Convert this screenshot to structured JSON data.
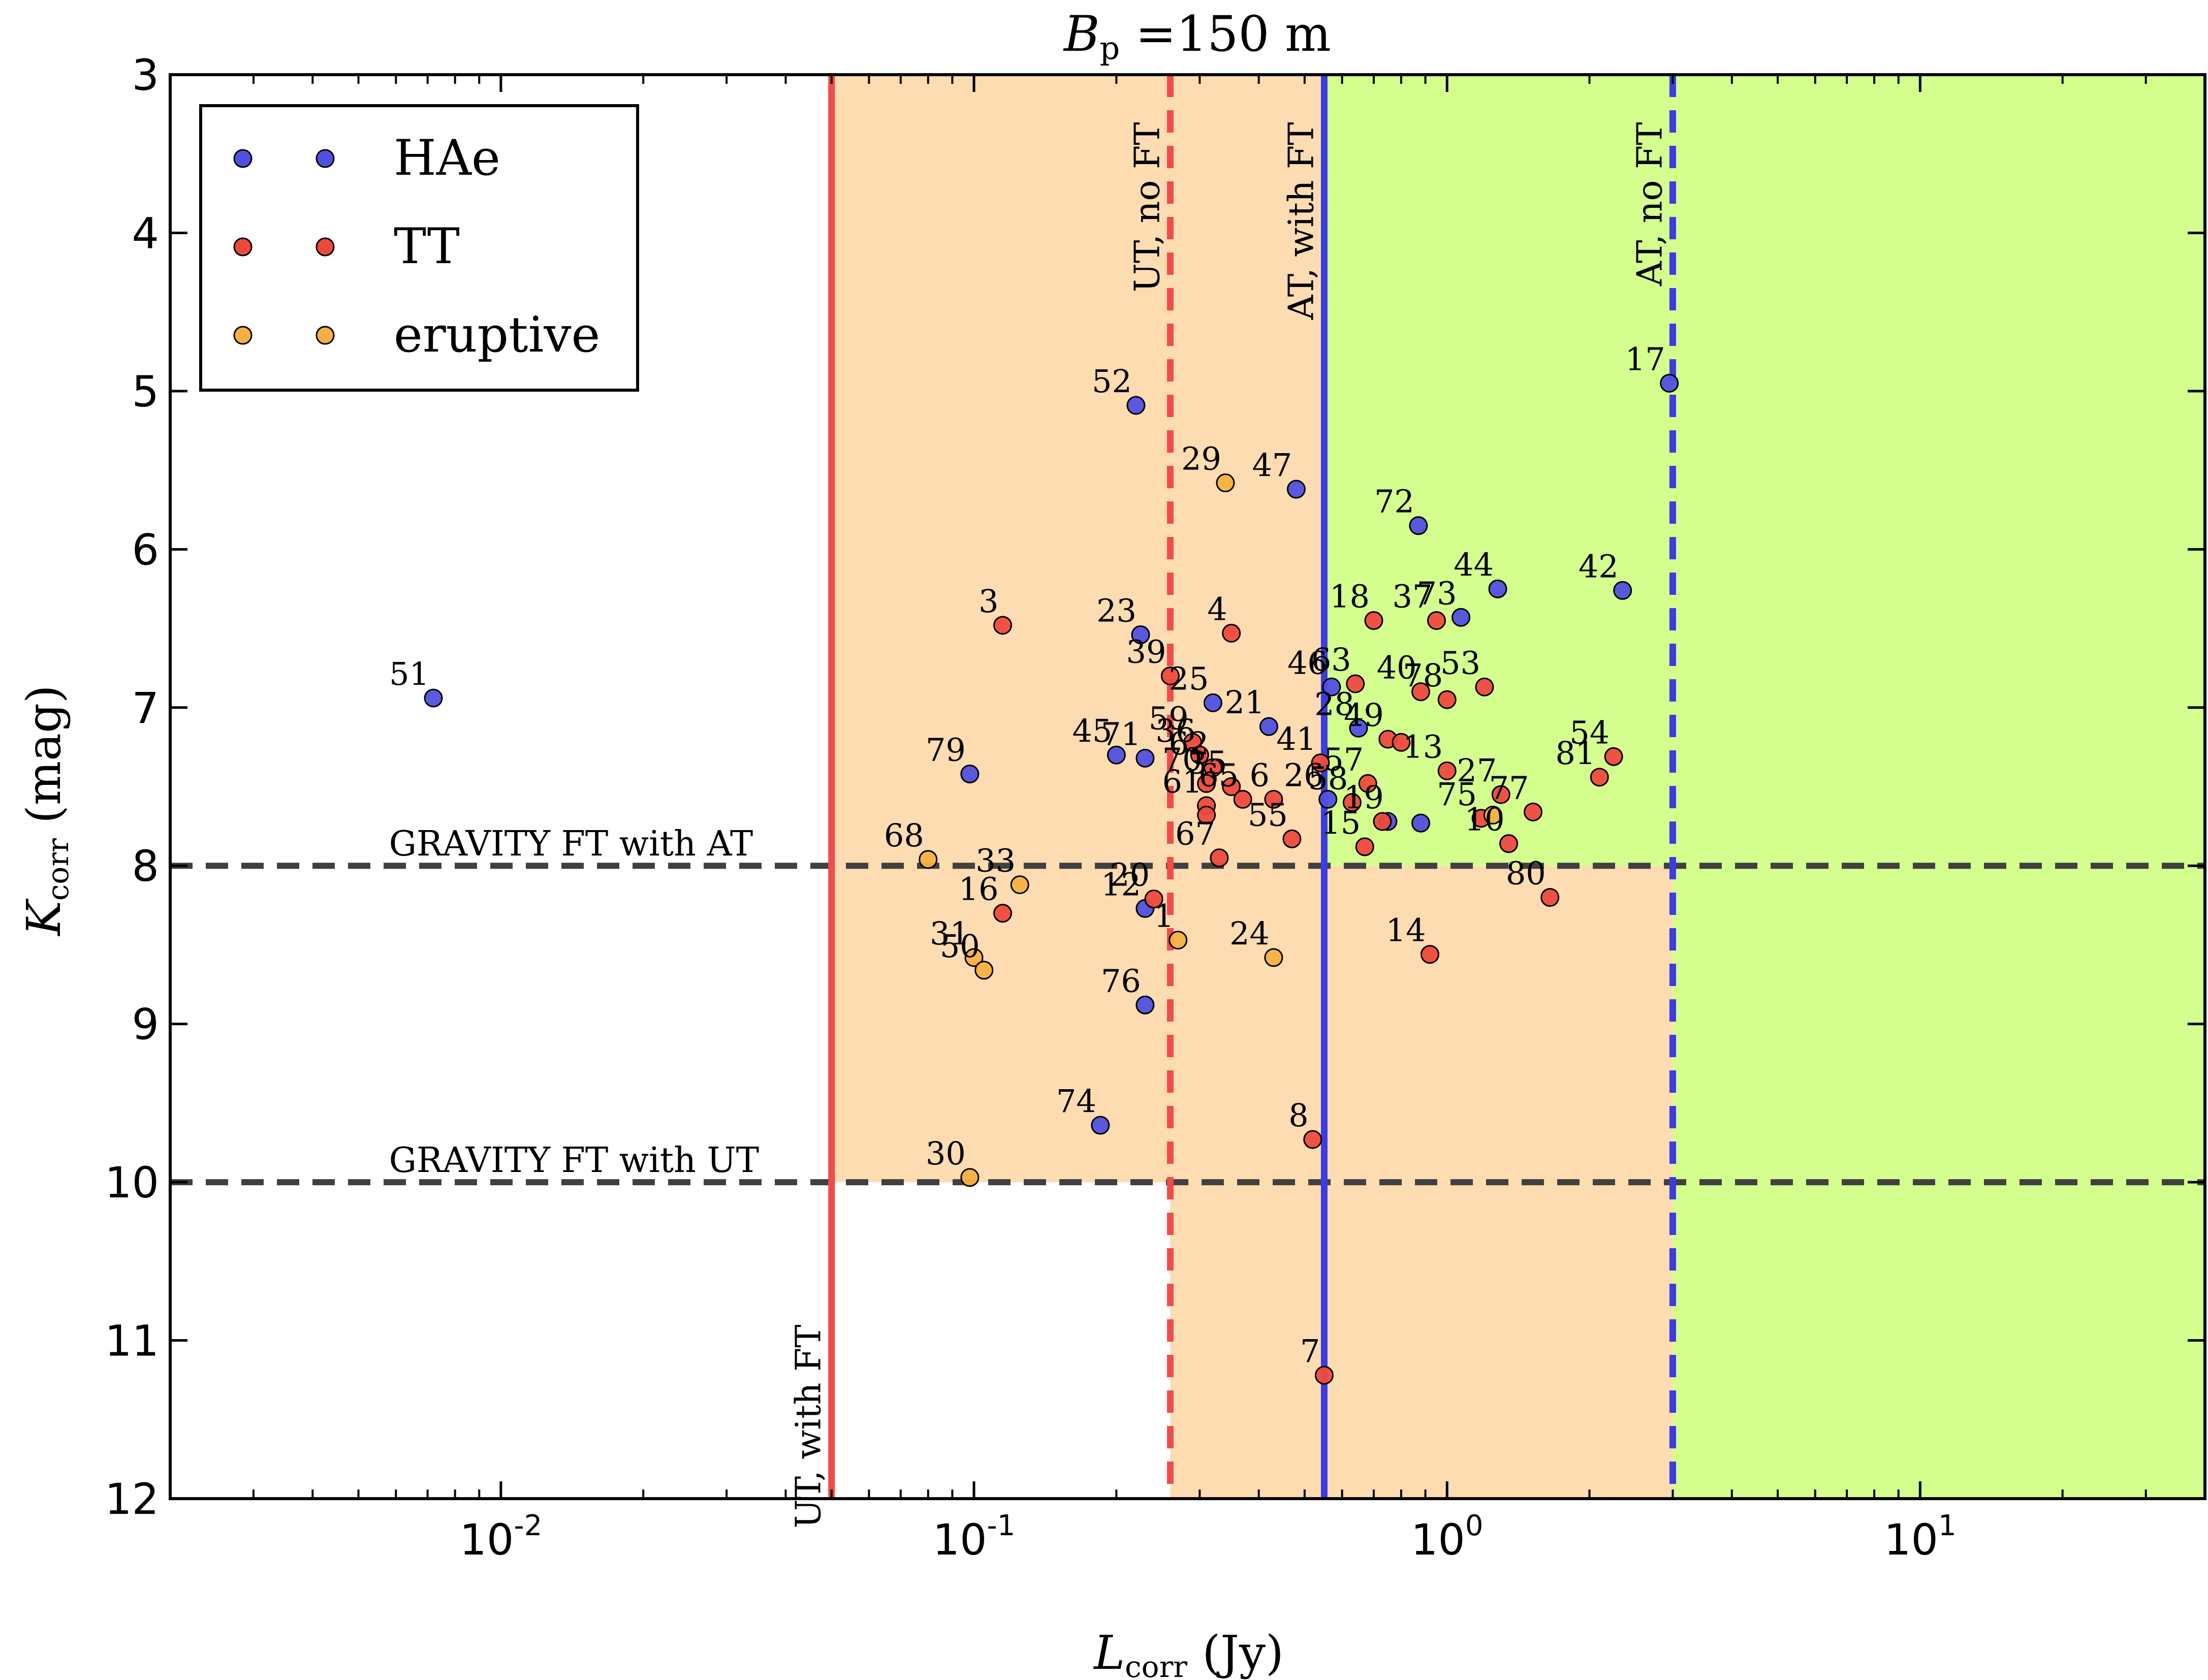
{
  "chart_data": {
    "type": "scatter",
    "title": {
      "main": "B",
      "sub": "p",
      "rest": " =150 m"
    },
    "xlabel": {
      "main": "L",
      "sub": "corr",
      "rest": " (Jy)"
    },
    "ylabel": {
      "main": "K",
      "sub": "corr",
      "rest": " (mag)"
    },
    "x_scale": "log",
    "xlim": [
      0.002,
      40
    ],
    "ylim": [
      12,
      3
    ],
    "x_ticks": [
      {
        "value": 0.01,
        "base": "10",
        "exp": "-2"
      },
      {
        "value": 0.1,
        "base": "10",
        "exp": "-1"
      },
      {
        "value": 1,
        "base": "10",
        "exp": "0"
      },
      {
        "value": 10,
        "base": "10",
        "exp": "1"
      }
    ],
    "y_ticks": [
      "3",
      "4",
      "5",
      "6",
      "7",
      "8",
      "9",
      "10",
      "11",
      "12"
    ],
    "colors": {
      "HAe": "#5050e0",
      "TT": "#ee4a3c",
      "eruptive": "#f5b041",
      "region_ut": "#fddcb1",
      "region_at": "#d4ff8e",
      "ut_line": "#f24b4b",
      "at_line": "#3c3ce0",
      "gravity_line": "#404040"
    },
    "regions": [
      {
        "name": "ut-only-upper",
        "x": [
          0.05,
          0.55
        ],
        "y": [
          3,
          10
        ],
        "color_key": "region_ut"
      },
      {
        "name": "ut-only-lower",
        "x": [
          0.26,
          0.55
        ],
        "y": [
          10,
          12
        ],
        "color_key": "region_ut"
      },
      {
        "name": "at-upper",
        "x": [
          0.55,
          40
        ],
        "y": [
          3,
          8
        ],
        "color_key": "region_at"
      },
      {
        "name": "ut-band-mid",
        "x": [
          0.55,
          3.0
        ],
        "y": [
          8,
          12
        ],
        "color_key": "region_ut"
      },
      {
        "name": "at-right",
        "x": [
          3.0,
          40
        ],
        "y": [
          8,
          12
        ],
        "color_key": "region_at"
      }
    ],
    "vlines": [
      {
        "x": 0.05,
        "style": "solid",
        "color_key": "ut_line",
        "label": "UT, with FT",
        "label_y": 10.9
      },
      {
        "x": 0.26,
        "style": "dashed",
        "color_key": "ut_line",
        "label": "UT, no FT",
        "label_y": 3.3
      },
      {
        "x": 0.55,
        "style": "solid",
        "color_key": "at_line",
        "label": "AT, with FT",
        "label_y": 3.3
      },
      {
        "x": 3.0,
        "style": "dashed",
        "color_key": "at_line",
        "label": "AT, no FT",
        "label_y": 3.3
      }
    ],
    "hlines": [
      {
        "y": 8,
        "label": "GRAVITY FT with AT",
        "label_x": 0.0058
      },
      {
        "y": 10,
        "label": "GRAVITY FT with UT",
        "label_x": 0.0058
      }
    ],
    "legend": {
      "position": "top-left",
      "entries": [
        {
          "name": "HAe",
          "color_key": "HAe"
        },
        {
          "name": "TT",
          "color_key": "TT"
        },
        {
          "name": "eruptive",
          "color_key": "eruptive"
        }
      ]
    },
    "series": [
      {
        "name": "HAe",
        "color_key": "HAe",
        "points": [
          {
            "id": "51",
            "x": 0.0072,
            "y": 6.94
          },
          {
            "id": "79",
            "x": 0.098,
            "y": 7.42
          },
          {
            "id": "52",
            "x": 0.22,
            "y": 5.09
          },
          {
            "id": "23",
            "x": 0.225,
            "y": 6.54
          },
          {
            "id": "45",
            "x": 0.2,
            "y": 7.3
          },
          {
            "id": "71",
            "x": 0.23,
            "y": 7.32
          },
          {
            "id": "12",
            "x": 0.23,
            "y": 8.27
          },
          {
            "id": "76",
            "x": 0.23,
            "y": 8.88
          },
          {
            "id": "74",
            "x": 0.185,
            "y": 9.64
          },
          {
            "id": "25",
            "x": 0.32,
            "y": 6.97
          },
          {
            "id": "21",
            "x": 0.42,
            "y": 7.12
          },
          {
            "id": "47",
            "x": 0.48,
            "y": 5.62
          },
          {
            "id": "46",
            "x": 0.57,
            "y": 6.87
          },
          {
            "id": "28",
            "x": 0.65,
            "y": 7.13
          },
          {
            "id": "26",
            "x": 0.56,
            "y": 7.58
          },
          {
            "id": "19",
            "x": 0.75,
            "y": 7.72
          },
          {
            "id": "72",
            "x": 0.87,
            "y": 5.85
          },
          {
            "id": "73",
            "x": 1.07,
            "y": 6.43
          },
          {
            "id": "44",
            "x": 1.28,
            "y": 6.25
          },
          {
            "id": "42",
            "x": 2.35,
            "y": 6.26
          },
          {
            "id": "17",
            "x": 2.95,
            "y": 4.95
          },
          {
            "id": "",
            "x": 0.88,
            "y": 7.73
          }
        ]
      },
      {
        "name": "TT",
        "color_key": "TT",
        "points": [
          {
            "id": "3",
            "x": 0.115,
            "y": 6.48
          },
          {
            "id": "16",
            "x": 0.115,
            "y": 8.3
          },
          {
            "id": "20",
            "x": 0.24,
            "y": 8.21
          },
          {
            "id": "39",
            "x": 0.26,
            "y": 6.8
          },
          {
            "id": "59",
            "x": 0.29,
            "y": 7.22
          },
          {
            "id": "36",
            "x": 0.3,
            "y": 7.3
          },
          {
            "id": "62",
            "x": 0.32,
            "y": 7.38
          },
          {
            "id": "70",
            "x": 0.31,
            "y": 7.48
          },
          {
            "id": "61",
            "x": 0.31,
            "y": 7.62
          },
          {
            "id": "",
            "x": 0.31,
            "y": 7.68
          },
          {
            "id": "35",
            "x": 0.35,
            "y": 7.5
          },
          {
            "id": "65",
            "x": 0.37,
            "y": 7.58
          },
          {
            "id": "6",
            "x": 0.43,
            "y": 7.58
          },
          {
            "id": "67",
            "x": 0.33,
            "y": 7.95
          },
          {
            "id": "4",
            "x": 0.35,
            "y": 6.53
          },
          {
            "id": "55",
            "x": 0.47,
            "y": 7.83
          },
          {
            "id": "41",
            "x": 0.54,
            "y": 7.35
          },
          {
            "id": "63",
            "x": 0.64,
            "y": 6.85
          },
          {
            "id": "18",
            "x": 0.7,
            "y": 6.45
          },
          {
            "id": "57",
            "x": 0.68,
            "y": 7.48
          },
          {
            "id": "58",
            "x": 0.63,
            "y": 7.6
          },
          {
            "id": "15",
            "x": 0.67,
            "y": 7.88
          },
          {
            "id": "",
            "x": 0.73,
            "y": 7.72
          },
          {
            "id": "49",
            "x": 0.75,
            "y": 7.2
          },
          {
            "id": "",
            "x": 0.8,
            "y": 7.22
          },
          {
            "id": "37",
            "x": 0.95,
            "y": 6.45
          },
          {
            "id": "40",
            "x": 0.88,
            "y": 6.9
          },
          {
            "id": "78",
            "x": 1.0,
            "y": 6.95
          },
          {
            "id": "13",
            "x": 1.0,
            "y": 7.4
          },
          {
            "id": "53",
            "x": 1.2,
            "y": 6.87
          },
          {
            "id": "75",
            "x": 1.18,
            "y": 7.7
          },
          {
            "id": "27",
            "x": 1.3,
            "y": 7.55
          },
          {
            "id": "10",
            "x": 1.35,
            "y": 7.86
          },
          {
            "id": "77",
            "x": 1.52,
            "y": 7.66
          },
          {
            "id": "80",
            "x": 1.65,
            "y": 8.2
          },
          {
            "id": "14",
            "x": 0.92,
            "y": 8.56
          },
          {
            "id": "8",
            "x": 0.52,
            "y": 9.73
          },
          {
            "id": "7",
            "x": 0.55,
            "y": 11.22
          },
          {
            "id": "54",
            "x": 2.25,
            "y": 7.31
          },
          {
            "id": "81",
            "x": 2.1,
            "y": 7.44
          }
        ]
      },
      {
        "name": "eruptive",
        "color_key": "eruptive",
        "points": [
          {
            "id": "68",
            "x": 0.08,
            "y": 7.96
          },
          {
            "id": "33",
            "x": 0.125,
            "y": 8.12
          },
          {
            "id": "31",
            "x": 0.1,
            "y": 8.58
          },
          {
            "id": "50",
            "x": 0.105,
            "y": 8.66
          },
          {
            "id": "30",
            "x": 0.098,
            "y": 9.97
          },
          {
            "id": "29",
            "x": 0.34,
            "y": 5.58
          },
          {
            "id": "1",
            "x": 0.27,
            "y": 8.47
          },
          {
            "id": "24",
            "x": 0.43,
            "y": 8.58
          },
          {
            "id": "",
            "x": 1.25,
            "y": 7.68
          }
        ]
      }
    ]
  }
}
